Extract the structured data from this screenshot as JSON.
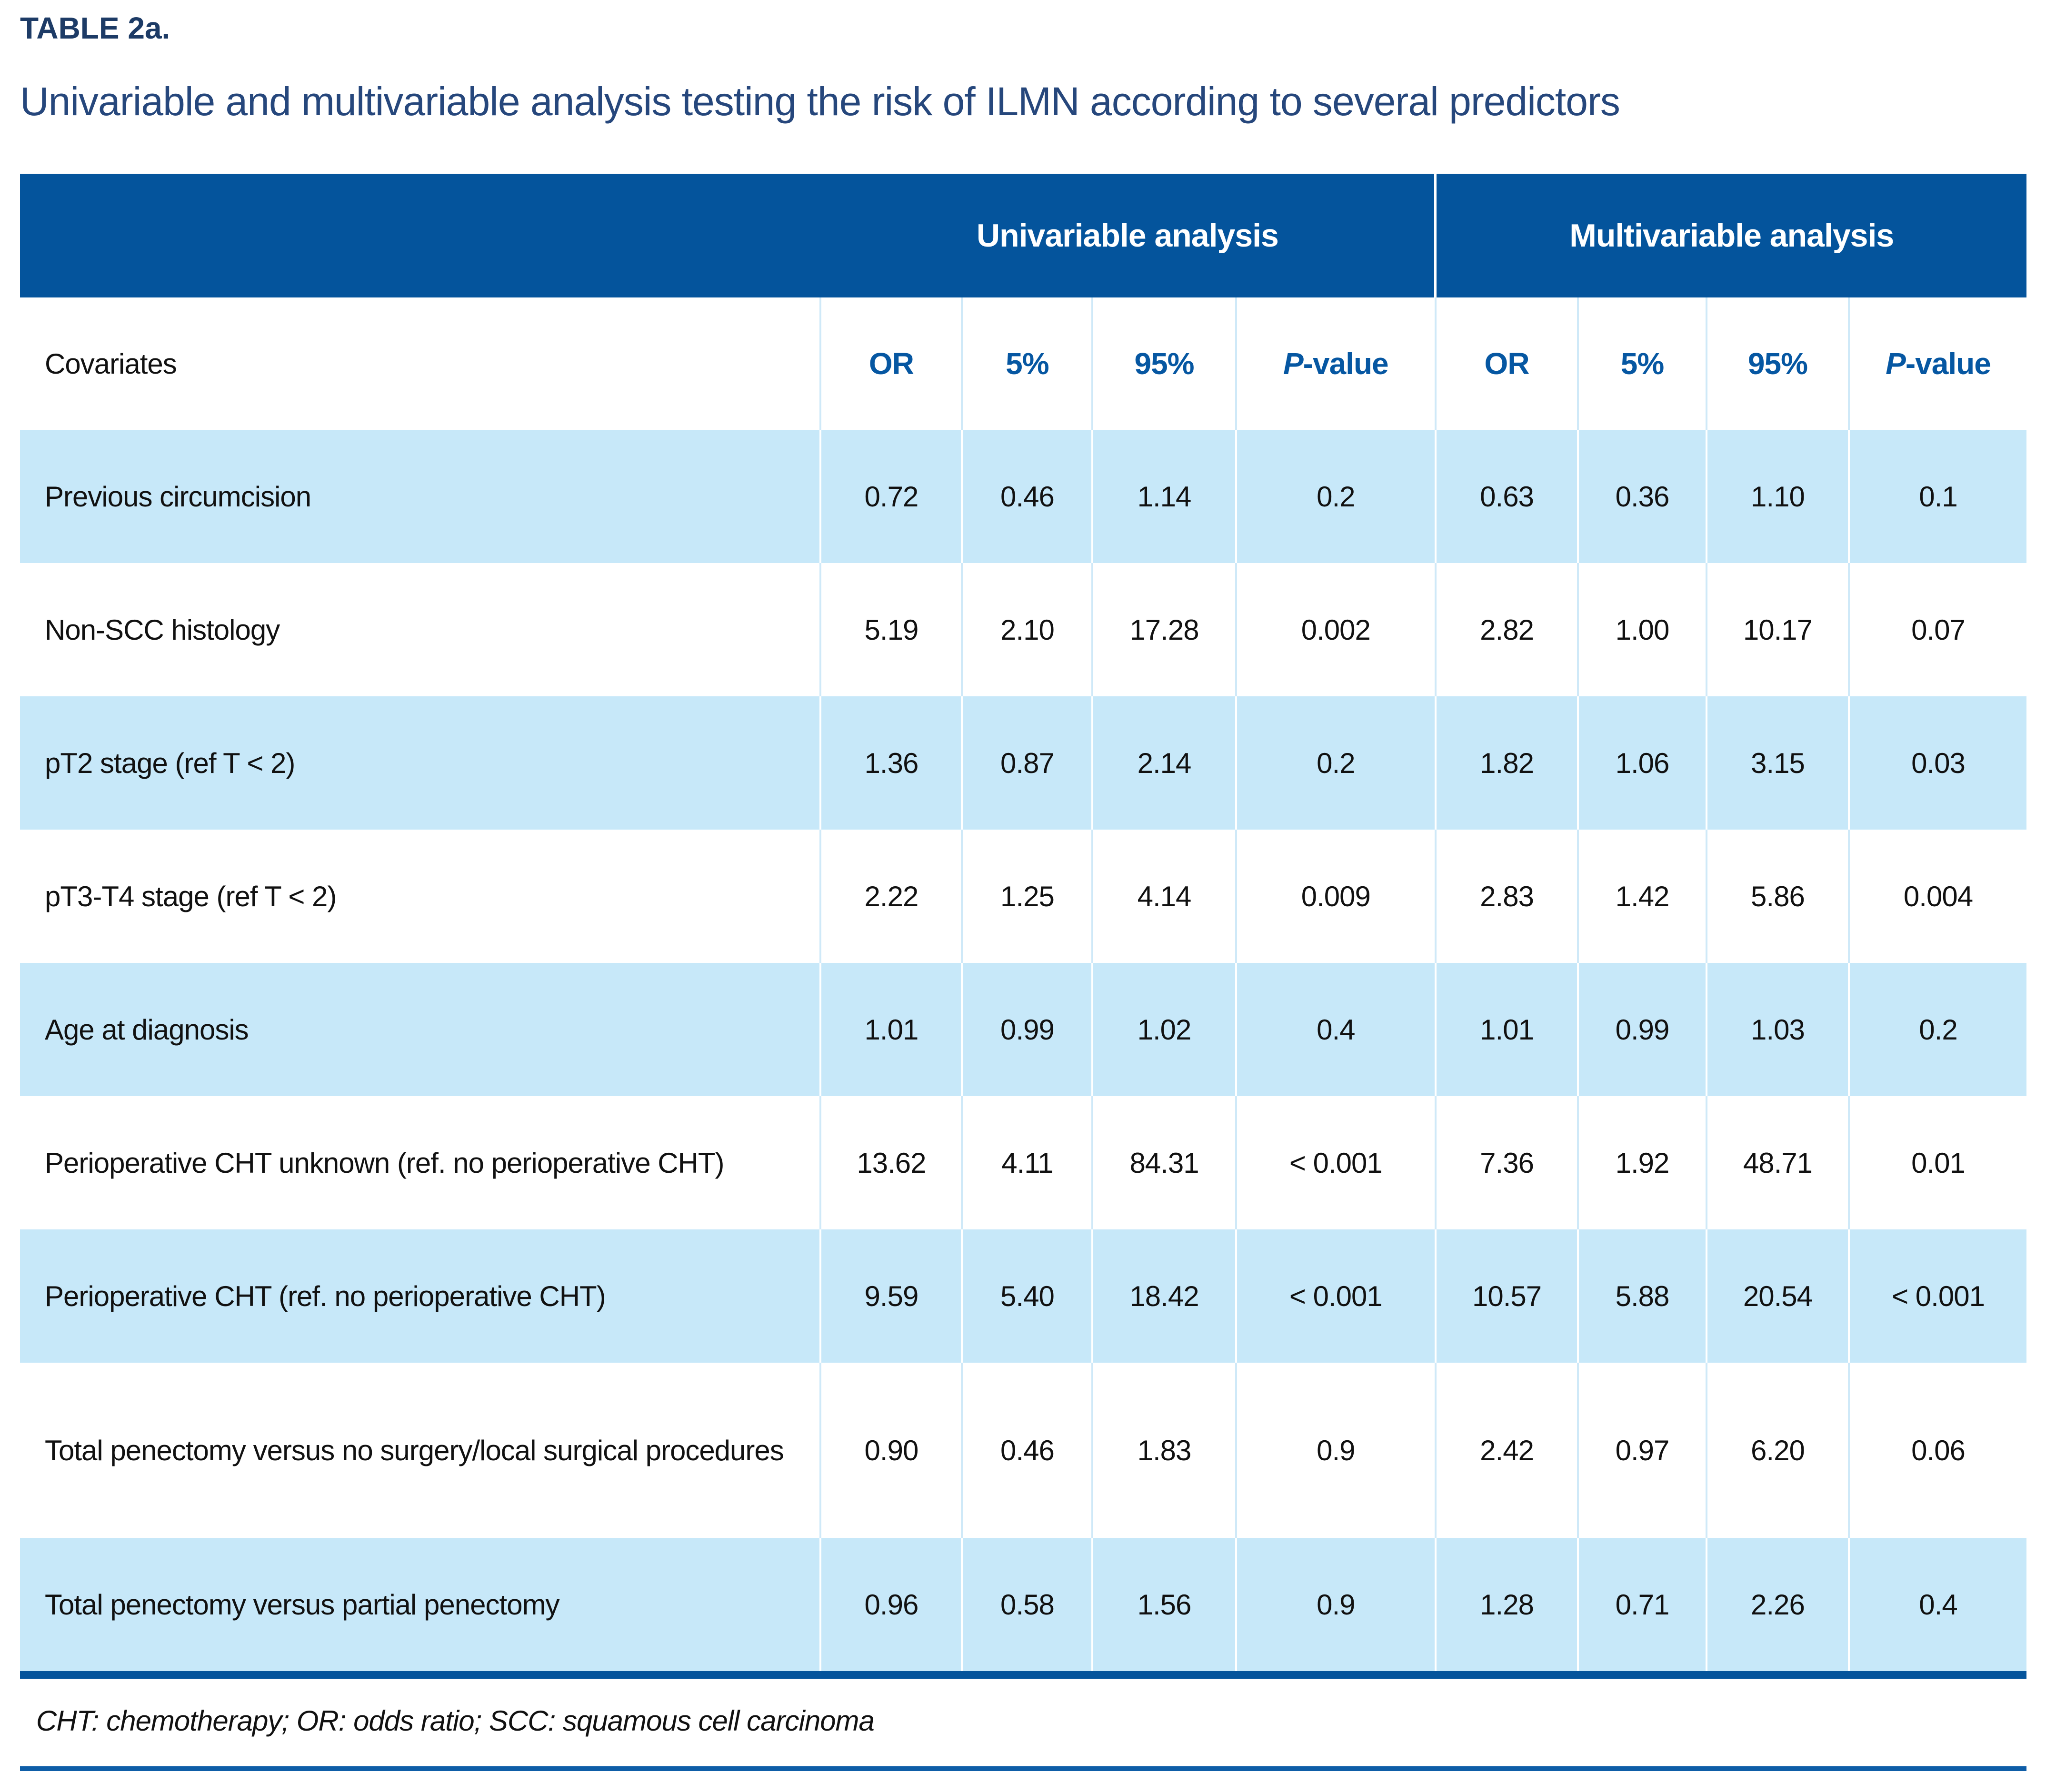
{
  "page": {
    "title": "TABLE 2a.",
    "subtitle": "Univariable and multivariable analysis testing the risk of ILMN according to several predictors",
    "footnote": "CHT: chemotherapy; OR: odds ratio; SCC: squamous cell carcinoma"
  },
  "colors": {
    "band_bg": "#04549c",
    "row_alt_bg": "#c7e8f9",
    "column_header_text": "#0657a2",
    "title_text": "#1d3b66",
    "subtitle_text": "#26477c",
    "divider_on_white": "#cfe9f8",
    "bottom_rule": "#0e5da7"
  },
  "table": {
    "group_headers": {
      "univariable": "Univariable analysis",
      "multivariable": "Multivariable analysis"
    },
    "covariates_header": "Covariates",
    "columns": [
      "OR",
      "5%",
      "95%",
      "P-value",
      "OR",
      "5%",
      "95%",
      "P-value"
    ],
    "p_value_italic_prefix": "P",
    "p_value_suffix": "-value",
    "rows": [
      {
        "label": "Previous circumcision",
        "values": [
          "0.72",
          "0.46",
          "1.14",
          "0.2",
          "0.63",
          "0.36",
          "1.10",
          "0.1"
        ]
      },
      {
        "label": "Non-SCC histology",
        "values": [
          "5.19",
          "2.10",
          "17.28",
          "0.002",
          "2.82",
          "1.00",
          "10.17",
          "0.07"
        ]
      },
      {
        "label": "pT2 stage (ref T < 2)",
        "values": [
          "1.36",
          "0.87",
          "2.14",
          "0.2",
          "1.82",
          "1.06",
          "3.15",
          "0.03"
        ]
      },
      {
        "label": "pT3-T4 stage (ref T < 2)",
        "values": [
          "2.22",
          "1.25",
          "4.14",
          "0.009",
          "2.83",
          "1.42",
          "5.86",
          "0.004"
        ]
      },
      {
        "label": "Age at diagnosis",
        "values": [
          "1.01",
          "0.99",
          "1.02",
          "0.4",
          "1.01",
          "0.99",
          "1.03",
          "0.2"
        ]
      },
      {
        "label": "Perioperative CHT unknown (ref. no perioperative CHT)",
        "values": [
          "13.62",
          "4.11",
          "84.31",
          "< 0.001",
          "7.36",
          "1.92",
          "48.71",
          "0.01"
        ]
      },
      {
        "label": "Perioperative CHT (ref. no perioperative CHT)",
        "values": [
          "9.59",
          "5.40",
          "18.42",
          "< 0.001",
          "10.57",
          "5.88",
          "20.54",
          "< 0.001"
        ]
      },
      {
        "label": "Total penectomy versus no surgery/local surgical procedures",
        "values": [
          "0.90",
          "0.46",
          "1.83",
          "0.9",
          "2.42",
          "0.97",
          "6.20",
          "0.06"
        ]
      },
      {
        "label": "Total penectomy versus partial penectomy",
        "values": [
          "0.96",
          "0.58",
          "1.56",
          "0.9",
          "1.28",
          "0.71",
          "2.26",
          "0.4"
        ]
      }
    ]
  }
}
